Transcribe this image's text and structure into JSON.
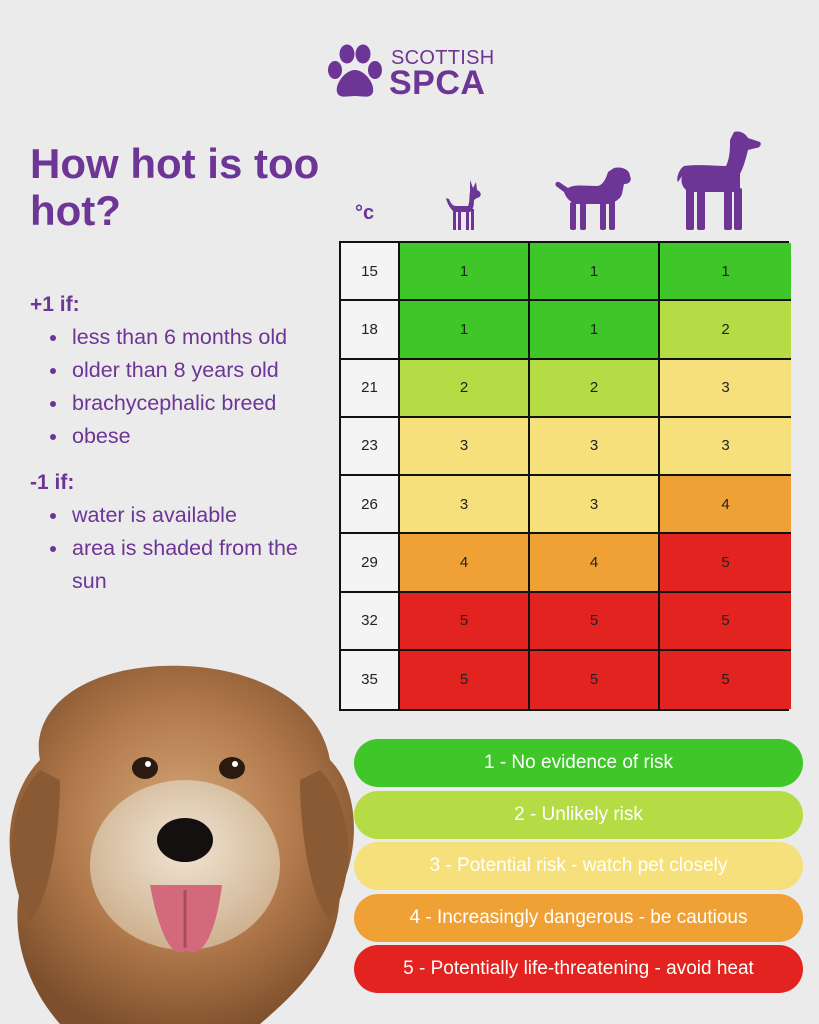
{
  "brand": {
    "line1": "SCOTTISH",
    "line2": "SPCA"
  },
  "title": "How hot is too hot?",
  "plus": {
    "heading": "+1 if:",
    "items": [
      "less than 6 months old",
      "older than 8 years old",
      "brachycephalic breed",
      "obese"
    ]
  },
  "minus": {
    "heading": "-1 if:",
    "items": [
      "water is available",
      "area is shaded from the sun"
    ]
  },
  "table": {
    "unit": "°c",
    "columns": [
      "small-dog-icon",
      "medium-dog-icon",
      "large-dog-icon"
    ],
    "rows": [
      {
        "temp": "15",
        "values": [
          1,
          1,
          1
        ]
      },
      {
        "temp": "18",
        "values": [
          1,
          1,
          2
        ]
      },
      {
        "temp": "21",
        "values": [
          2,
          2,
          3
        ]
      },
      {
        "temp": "23",
        "values": [
          3,
          3,
          3
        ]
      },
      {
        "temp": "26",
        "values": [
          3,
          3,
          4
        ]
      },
      {
        "temp": "29",
        "values": [
          4,
          4,
          5
        ]
      },
      {
        "temp": "32",
        "values": [
          5,
          5,
          5
        ]
      },
      {
        "temp": "35",
        "values": [
          5,
          5,
          5
        ]
      }
    ]
  },
  "levels": [
    {
      "level": 1,
      "label": "1 - No evidence of risk",
      "color": "#3fc72a"
    },
    {
      "level": 2,
      "label": "2 - Unlikely risk",
      "color": "#b6dc45"
    },
    {
      "level": 3,
      "label": "3 - Potential risk - watch pet closely",
      "color": "#f5e07b"
    },
    {
      "level": 4,
      "label": "4 - Increasingly dangerous - be cautious",
      "color": "#f0a136"
    },
    {
      "level": 5,
      "label": "5 - Potentially life-threatening - avoid heat",
      "color": "#e2231f"
    }
  ],
  "colors": {
    "brand_purple": "#6d3596",
    "background": "#ebebeb"
  }
}
